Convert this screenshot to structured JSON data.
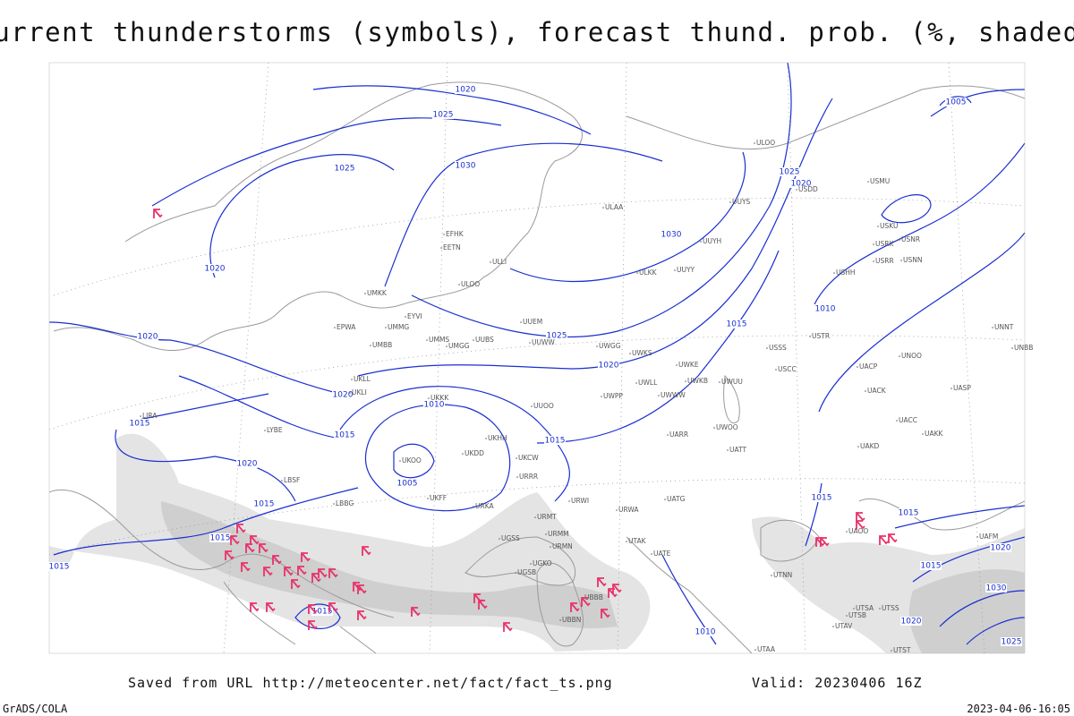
{
  "title": "Current thunderstorms (symbols), forecast thund. prob. (%, shaded)",
  "footer": {
    "source": "Saved from URL http://meteocenter.net/fact/fact_ts.png",
    "valid": "Valid: 20230406 16Z",
    "credit": "GrADS/COLA",
    "timestamp": "2023-04-06-16:05"
  },
  "isobar_labels": [
    "1020",
    "1025",
    "1025",
    "1030",
    "1020",
    "1030",
    "1025",
    "1020",
    "1010",
    "1015",
    "1025",
    "1020",
    "1020",
    "1020",
    "1015",
    "1010",
    "1015",
    "1005",
    "1020",
    "1015",
    "1015",
    "1015",
    "1015",
    "1015",
    "1010",
    "1015",
    "1015",
    "1005",
    "1020",
    "1015",
    "1030",
    "1020",
    "1025"
  ],
  "stations": [
    "ULAA",
    "ULLI",
    "EFHK",
    "EETN",
    "ULOO",
    "UMKK",
    "EYVI",
    "UMMG",
    "EPWA",
    "UMBB",
    "UMMS",
    "UMGG",
    "UUBS",
    "UUEM",
    "UUWW",
    "UWGG",
    "UWKS",
    "ULKK",
    "UUYY",
    "UUYH",
    "UUYS",
    "ULOO",
    "USDD",
    "USMU",
    "USKU",
    "USRK",
    "USNR",
    "USRR",
    "USNN",
    "USHH",
    "UNNT",
    "UNBB",
    "USTR",
    "UNOO",
    "USCC",
    "USSS",
    "UWKE",
    "UWKB",
    "UWUU",
    "UWLL",
    "UWWW",
    "UWPP",
    "UUOO",
    "UKKK",
    "UKLL",
    "UKLI",
    "LYBE",
    "LBSF",
    "LBBG",
    "LIRA",
    "UKHH",
    "UKDD",
    "UKOO",
    "UKFF",
    "URKA",
    "URRR",
    "UKCW",
    "URWI",
    "URMT",
    "URMM",
    "URMN",
    "UGSS",
    "UGKO",
    "UGSB",
    "UBBB",
    "UBBN",
    "UTAK",
    "UATE",
    "URWA",
    "UATG",
    "UARR",
    "UATT",
    "UWOO",
    "UACC",
    "UAKK",
    "UAKD",
    "UAOO",
    "UASP",
    "UACP",
    "UACK",
    "UTSA",
    "UTSB",
    "UTAV",
    "UTSS",
    "UTST",
    "UTAA",
    "UTNN",
    "UAFM"
  ]
}
